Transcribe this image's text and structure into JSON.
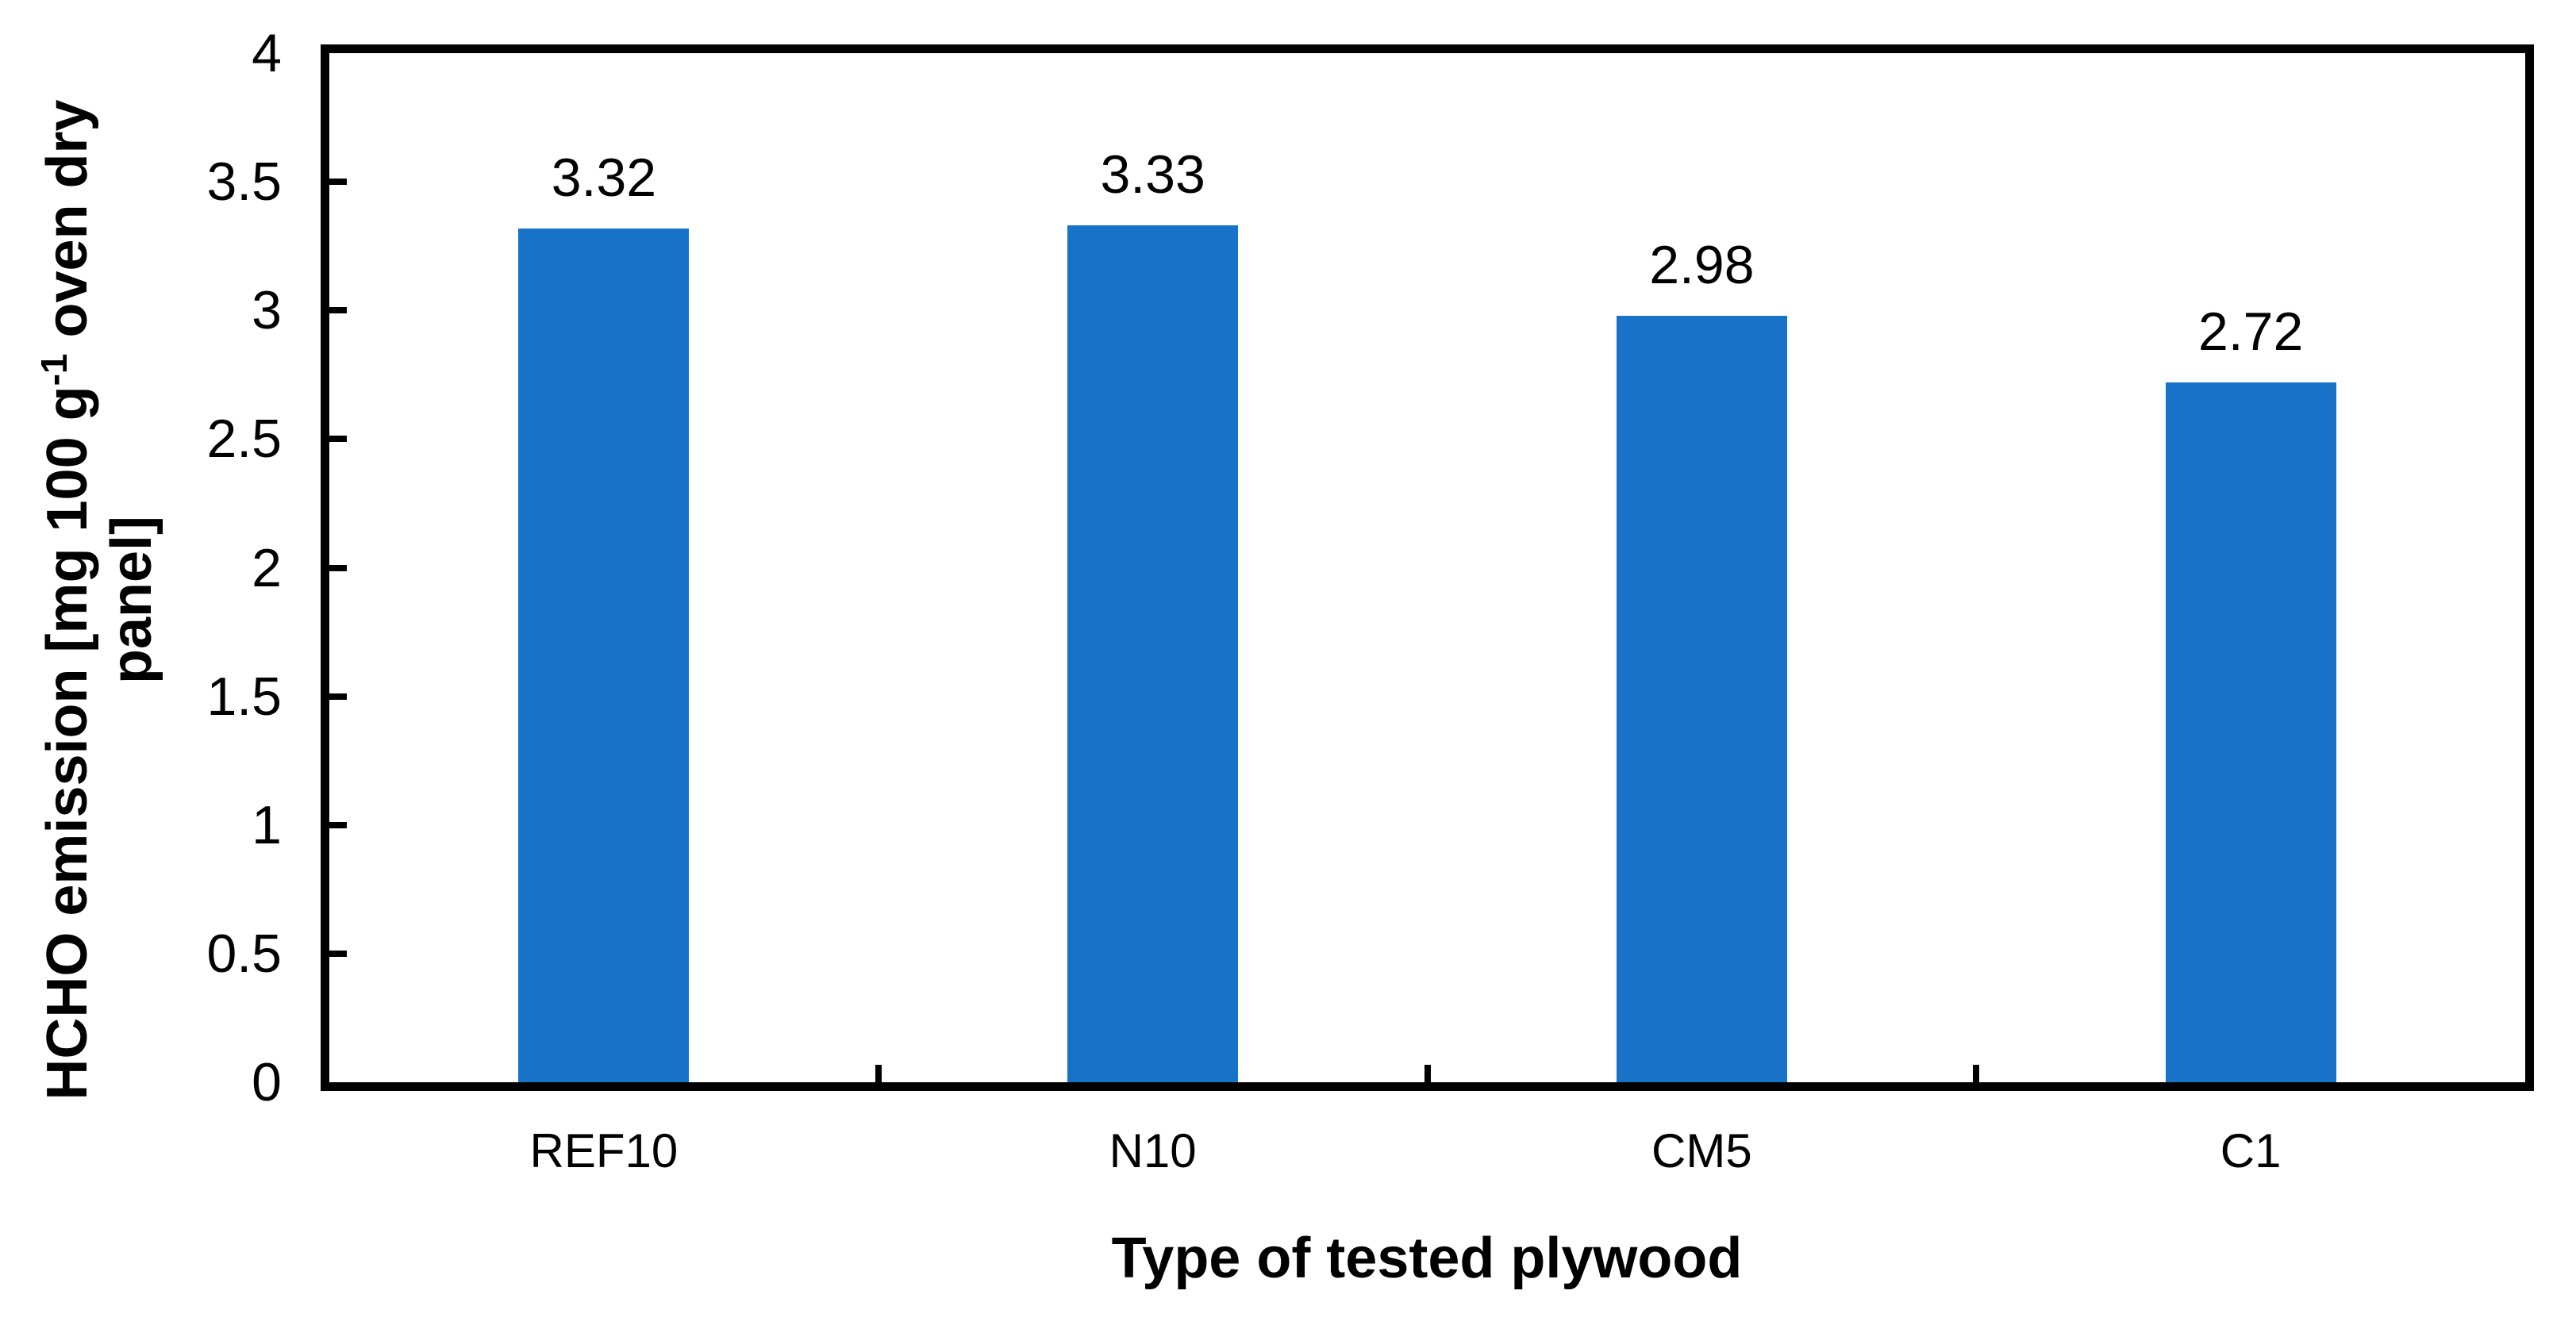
{
  "chart_data": {
    "type": "bar",
    "title": "",
    "categories": [
      "REF10",
      "N10",
      "CM5",
      "C1"
    ],
    "values": [
      3.32,
      3.33,
      2.98,
      2.72
    ],
    "value_labels": [
      "3.32",
      "3.33",
      "2.98",
      "2.72"
    ],
    "xlabel": "Type of tested plywood",
    "ylabel": "HCHO emission [mg 100 g⁻¹ oven dry panel]",
    "ylabel_line1_prefix": "HCHO emission [mg 100 g",
    "ylabel_line1_sup": "-1",
    "ylabel_line1_suffix": " oven dry",
    "ylabel_line2": "panel]",
    "ylim": [
      0,
      4
    ],
    "ytick_interval": 0.5,
    "yticks": [
      {
        "value": 0,
        "label": "0"
      },
      {
        "value": 0.5,
        "label": "0.5"
      },
      {
        "value": 1,
        "label": "1"
      },
      {
        "value": 1.5,
        "label": "1.5"
      },
      {
        "value": 2,
        "label": "2"
      },
      {
        "value": 2.5,
        "label": "2.5"
      },
      {
        "value": 3,
        "label": "3"
      },
      {
        "value": 3.5,
        "label": "3.5"
      },
      {
        "value": 4,
        "label": "4"
      }
    ],
    "grid": false,
    "legend": "none",
    "colors": {
      "bar": "#1772C8",
      "axis": "#000000",
      "text": "#000000",
      "background": "#FFFFFF"
    }
  }
}
